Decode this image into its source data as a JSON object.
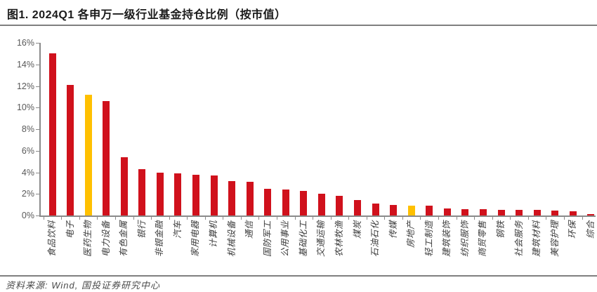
{
  "header": {
    "title": "图1. 2024Q1 各申万一级行业基金持仓比例（按市值）"
  },
  "footer": {
    "source": "资料来源: Wind, 国投证券研究中心"
  },
  "colors": {
    "bar_red": "#d0111c",
    "bar_highlight": "#ffc000",
    "axis_gray": "#8a8a8a"
  },
  "chart_data": {
    "type": "bar",
    "title": "2024Q1 各申万一级行业基金持仓比例（按市值）",
    "unit": "%",
    "ylim": [
      0,
      16
    ],
    "y_ticks": [
      0,
      2,
      4,
      6,
      8,
      10,
      12,
      14,
      16
    ],
    "y_tick_suffix": "%",
    "grid": false,
    "legend": "none",
    "categories": [
      "食品饮料",
      "电子",
      "医药生物",
      "电力设备",
      "有色金属",
      "银行",
      "非银金融",
      "汽车",
      "家用电器",
      "计算机",
      "机械设备",
      "通信",
      "国防军工",
      "公用事业",
      "基础化工",
      "交通运输",
      "农林牧渔",
      "煤炭",
      "石油石化",
      "传媒",
      "房地产",
      "轻工制造",
      "建筑装饰",
      "纺织服饰",
      "商贸零售",
      "钢铁",
      "社会服务",
      "建筑材料",
      "美容护理",
      "环保",
      "综合"
    ],
    "values": [
      15.0,
      12.1,
      11.2,
      10.6,
      5.4,
      4.3,
      4.0,
      3.9,
      3.8,
      3.7,
      3.2,
      3.1,
      2.5,
      2.4,
      2.3,
      2.0,
      1.8,
      1.4,
      1.1,
      1.0,
      0.9,
      0.9,
      0.65,
      0.6,
      0.6,
      0.55,
      0.5,
      0.5,
      0.45,
      0.4,
      0.15
    ],
    "highlighted_categories": [
      "医药生物",
      "房地产"
    ]
  }
}
